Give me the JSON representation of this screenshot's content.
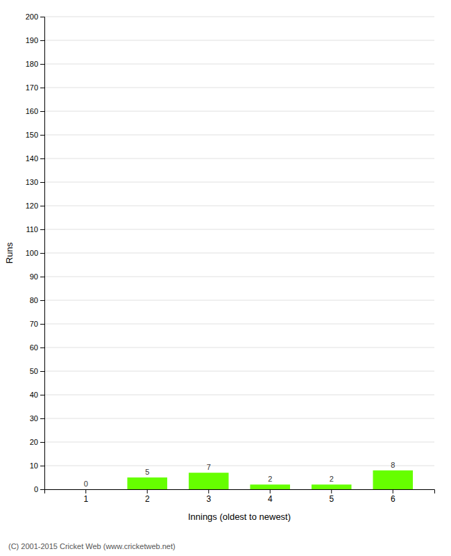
{
  "chart_data": {
    "type": "bar",
    "categories": [
      "1",
      "2",
      "3",
      "4",
      "5",
      "6"
    ],
    "values": [
      0,
      5,
      7,
      2,
      2,
      8
    ],
    "color": "#66ff00",
    "xlabel": "Innings (oldest to newest)",
    "ylabel": "Runs",
    "ylim": [
      0,
      200
    ],
    "yticks": [
      0,
      10,
      20,
      30,
      40,
      50,
      60,
      70,
      80,
      90,
      100,
      110,
      120,
      130,
      140,
      150,
      160,
      170,
      180,
      190,
      200
    ],
    "grid": true,
    "data_labels": true,
    "annotations": [
      "(C) 2001-2015 Cricket Web (www.cricketweb.net)"
    ]
  }
}
